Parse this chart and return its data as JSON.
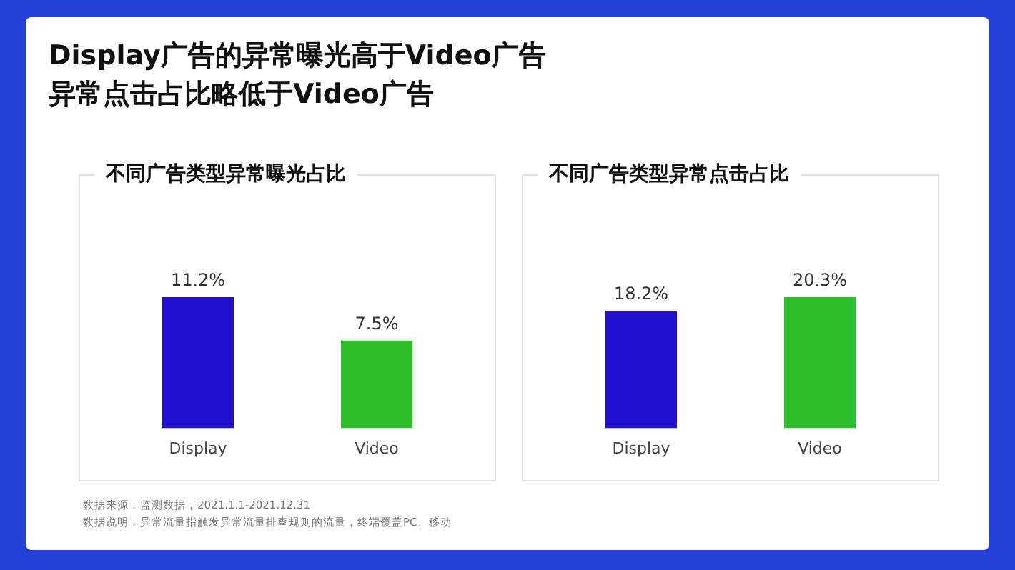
{
  "chart_data": [
    {
      "type": "other",
      "title": "Display广告的异常曝光高于Video广告异常点击占比略低于Video广告",
      "annotations": [
        "数据来源：监测数据，2021.1.1-2021.12.31",
        "数据说明：异常流量指触发异常流量排查规则的流量，终端覆盖PC、移动"
      ]
    },
    {
      "type": "bar",
      "title": "不同广告类型异常曝光占比",
      "categories": [
        "Display",
        "Video"
      ],
      "values": [
        11.2,
        7.5
      ],
      "colors": [
        "#1f0fcf",
        "#2bbf2b"
      ],
      "value_labels": [
        "11.2%",
        "7.5%"
      ],
      "grid": false,
      "legend": false,
      "tick_labels": "x"
    },
    {
      "type": "bar",
      "title": "不同广告类型异常点击占比",
      "categories": [
        "Display",
        "Video"
      ],
      "values": [
        18.2,
        20.3
      ],
      "colors": [
        "#1f0fcf",
        "#2bbf2b"
      ],
      "value_labels": [
        "18.2%",
        "20.3%"
      ],
      "grid": false,
      "legend": false,
      "tick_labels": "x"
    }
  ]
}
